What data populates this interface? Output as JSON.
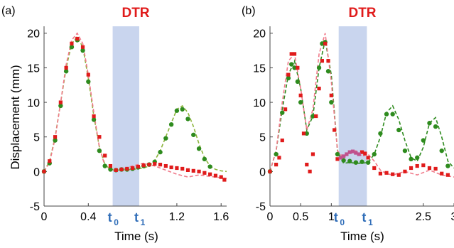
{
  "colors": {
    "highlight": "#c9d5ee",
    "accent_red": "#e01b1b",
    "green": "#2e8b1e",
    "green_curve": "#8cb43c",
    "red_curve": "#f07a8a",
    "tick_blue": "#2f6db8",
    "mag_dots": "#c0508c"
  },
  "chart_data": [
    {
      "panel_label": "(a)",
      "title": "DTR",
      "type": "scatter",
      "xlabel": "Time (s)",
      "ylabel": "Displacement (mm)",
      "xlim": [
        0,
        1.65
      ],
      "ylim": [
        -5,
        21
      ],
      "xticks": [
        {
          "v": 0,
          "t": "0"
        },
        {
          "v": 0.4,
          "t": "0.4"
        },
        {
          "v": 1.2,
          "t": "1.2"
        },
        {
          "v": 1.6,
          "t": "1.6"
        }
      ],
      "yticks": [
        {
          "v": -5,
          "t": "-5"
        },
        {
          "v": 0,
          "t": "0"
        },
        {
          "v": 5,
          "t": "5"
        },
        {
          "v": 10,
          "t": "10"
        },
        {
          "v": 15,
          "t": "15"
        },
        {
          "v": 20,
          "t": "20"
        }
      ],
      "special_ticks": [
        {
          "v": 0.62,
          "t": "t",
          "sub": "0"
        },
        {
          "v": 0.86,
          "t": "t",
          "sub": "1"
        }
      ],
      "highlight": [
        0.62,
        0.86
      ],
      "series": [
        {
          "style": "dash",
          "color": "#8cb43c",
          "x": [
            0,
            0.05,
            0.1,
            0.15,
            0.2,
            0.25,
            0.3,
            0.35,
            0.4,
            0.45,
            0.5,
            0.55,
            0.6,
            0.65,
            0.7,
            0.8,
            0.9,
            0.95,
            1.0,
            1.05,
            1.1,
            1.15,
            1.2,
            1.25,
            1.3,
            1.35,
            1.4,
            1.45,
            1.5,
            1.55,
            1.6,
            1.65
          ],
          "y": [
            0,
            1.5,
            5,
            10,
            15,
            18.5,
            19.5,
            18,
            13.5,
            8,
            3.5,
            1,
            0.3,
            0.2,
            0.2,
            0.3,
            0.5,
            0.8,
            1.6,
            3,
            5,
            7,
            9,
            9.5,
            8.5,
            6.5,
            4,
            2,
            0.8,
            0.3,
            0.1,
            0
          ]
        },
        {
          "style": "dash",
          "color": "#f07a8a",
          "x": [
            0,
            0.05,
            0.1,
            0.15,
            0.2,
            0.25,
            0.3,
            0.35,
            0.4,
            0.45,
            0.5,
            0.55,
            0.6,
            0.65,
            0.7,
            0.8,
            0.9,
            1.0,
            1.1,
            1.2,
            1.3,
            1.4,
            1.5,
            1.6,
            1.65
          ],
          "y": [
            0,
            1.3,
            4.8,
            10,
            15.5,
            19,
            20,
            18.5,
            14,
            8.5,
            3.5,
            0.8,
            0.2,
            0.1,
            0.3,
            0.8,
            1.2,
            0.8,
            0.2,
            -0.4,
            -0.8,
            -0.5,
            -0.7,
            -0.9,
            -1
          ]
        },
        {
          "style": "dots",
          "marker": "circle",
          "color": "#2e8b1e",
          "x": [
            0,
            0.05,
            0.1,
            0.15,
            0.2,
            0.25,
            0.3,
            0.35,
            0.4,
            0.45,
            0.5,
            0.55,
            0.6,
            0.65,
            0.7,
            0.75,
            0.8,
            0.85,
            0.9,
            0.95,
            1.0,
            1.05,
            1.1,
            1.15,
            1.2,
            1.25,
            1.3,
            1.35,
            1.4,
            1.45,
            1.5
          ],
          "y": [
            0,
            1.2,
            4.5,
            9.5,
            14.5,
            18,
            19,
            17.5,
            13,
            7.5,
            3,
            0.8,
            0.3,
            0.2,
            0.3,
            0.3,
            0.4,
            0.6,
            0.8,
            1.0,
            1.4,
            2.8,
            4.8,
            6.8,
            8.8,
            9.0,
            7.6,
            5.3,
            3.3,
            1.8,
            0.7
          ]
        },
        {
          "style": "dots",
          "marker": "square",
          "color": "#e01b1b",
          "x": [
            0,
            0.05,
            0.1,
            0.15,
            0.2,
            0.25,
            0.3,
            0.35,
            0.4,
            0.45,
            0.5,
            0.55,
            0.6,
            0.65,
            0.7,
            0.75,
            0.8,
            0.85,
            0.9,
            0.95,
            1.0,
            1.05,
            1.1,
            1.15,
            1.2,
            1.25,
            1.3,
            1.35,
            1.4,
            1.45,
            1.5,
            1.55,
            1.6,
            1.63
          ],
          "y": [
            0,
            1.5,
            5,
            10,
            15,
            18.5,
            19.2,
            18,
            14,
            8,
            5,
            2.3,
            0.8,
            0.2,
            0.3,
            0.4,
            0.5,
            0.7,
            0.9,
            1.0,
            1.1,
            1.0,
            0.8,
            0.6,
            0.5,
            0.4,
            0.2,
            0.1,
            0.0,
            -0.2,
            -0.4,
            -0.6,
            -0.8,
            -1.2
          ]
        }
      ]
    },
    {
      "panel_label": "(b)",
      "title": "DTR",
      "type": "scatter",
      "xlabel": "Time (s)",
      "ylabel": "",
      "xlim": [
        0,
        3
      ],
      "ylim": [
        -5,
        21
      ],
      "xticks": [
        {
          "v": 0,
          "t": "0"
        },
        {
          "v": 0.5,
          "t": "0.5"
        },
        {
          "v": 1,
          "t": "1"
        },
        {
          "v": 2.5,
          "t": "2.5"
        },
        {
          "v": 3,
          "t": "3"
        }
      ],
      "yticks": [
        {
          "v": -5,
          "t": "-5"
        },
        {
          "v": 0,
          "t": "0"
        },
        {
          "v": 5,
          "t": "5"
        },
        {
          "v": 10,
          "t": "10"
        },
        {
          "v": 15,
          "t": "15"
        },
        {
          "v": 20,
          "t": "20"
        }
      ],
      "special_ticks": [
        {
          "v": 1.12,
          "t": "t",
          "sub": "0"
        },
        {
          "v": 1.58,
          "t": "t",
          "sub": "1"
        }
      ],
      "highlight": [
        1.12,
        1.58
      ],
      "series": [
        {
          "style": "dash",
          "color": "#2e8b1e",
          "x": [
            0,
            0.1,
            0.2,
            0.3,
            0.4,
            0.5,
            0.6,
            0.7,
            0.8,
            0.9,
            1.0,
            1.1,
            1.2,
            1.3,
            1.4,
            1.5,
            1.6,
            1.7,
            1.8,
            1.9,
            2.0,
            2.1,
            2.2,
            2.3,
            2.4,
            2.5,
            2.6,
            2.7,
            2.8,
            2.9,
            3.0
          ],
          "y": [
            0,
            3,
            9,
            14,
            16,
            12,
            6,
            8,
            15,
            19,
            14,
            3,
            1.2,
            1.3,
            1.2,
            1.2,
            1.3,
            2.5,
            5,
            8.5,
            9.5,
            7.5,
            4.5,
            2,
            1.5,
            3.5,
            7,
            7.8,
            5,
            1.5,
            0.5
          ]
        },
        {
          "style": "dash",
          "color": "#f07a8a",
          "x": [
            0,
            0.1,
            0.2,
            0.3,
            0.4,
            0.5,
            0.6,
            0.7,
            0.8,
            0.9,
            1.0,
            1.1,
            1.2,
            1.3,
            1.4,
            1.5,
            1.6,
            1.7,
            1.8,
            1.9,
            2.0,
            2.2,
            2.4,
            2.6,
            2.8,
            3.0
          ],
          "y": [
            0,
            3,
            10,
            16,
            17,
            12,
            6,
            9,
            17,
            20,
            13,
            3,
            2,
            2.8,
            3,
            2.2,
            2.5,
            1.5,
            0.2,
            -0.3,
            -0.5,
            0,
            -0.5,
            0.2,
            -0.5,
            -0.8
          ]
        },
        {
          "style": "dots",
          "marker": "circle",
          "color": "#2e8b1e",
          "x": [
            0,
            0.1,
            0.2,
            0.3,
            0.35,
            0.4,
            0.45,
            0.5,
            0.6,
            0.7,
            0.8,
            0.85,
            0.9,
            0.95,
            1.0,
            1.1,
            1.2,
            1.3,
            1.4,
            1.5,
            1.6,
            1.7,
            1.8,
            1.9,
            2.0,
            2.1,
            2.2,
            2.3,
            2.4,
            2.5,
            2.6,
            2.7,
            2.8,
            2.9
          ],
          "y": [
            0,
            2.5,
            8.5,
            13.5,
            15.5,
            15,
            13,
            10,
            5.5,
            8,
            15,
            18.5,
            18.7,
            14.5,
            10,
            2.5,
            1.6,
            1.5,
            1.3,
            1.4,
            1.3,
            2.5,
            5.5,
            8.3,
            8.3,
            6,
            3,
            1.8,
            2,
            4.5,
            7,
            6.5,
            3,
            0.8
          ]
        },
        {
          "style": "dots",
          "marker": "square",
          "color": "#e01b1b",
          "x": [
            0,
            0.1,
            0.15,
            0.2,
            0.25,
            0.3,
            0.35,
            0.4,
            0.45,
            0.5,
            0.55,
            0.6,
            0.65,
            0.7,
            0.75,
            0.8,
            0.85,
            0.9,
            0.95,
            1.0,
            1.05,
            1.1,
            1.5,
            1.55,
            1.6,
            1.7,
            1.8,
            1.9,
            2.0,
            2.1,
            2.2,
            2.3,
            2.4,
            2.5,
            2.6,
            2.7,
            2.8,
            2.9
          ],
          "y": [
            0,
            1,
            2,
            4.5,
            9,
            14,
            17,
            17,
            15,
            11,
            5.5,
            1,
            0,
            2.5,
            8,
            12,
            16,
            18.5,
            16,
            11,
            6,
            1.8,
            2.8,
            2.6,
            2.0,
            0.5,
            -0.3,
            -0.2,
            -0.4,
            -0.5,
            0,
            0.5,
            0.8,
            0.9,
            0.5,
            0.4,
            -0.3,
            -0.5
          ]
        },
        {
          "style": "dots",
          "marker": "square",
          "color": "#c0508c",
          "x": [
            1.15,
            1.2,
            1.25,
            1.3,
            1.35,
            1.4,
            1.45
          ],
          "y": [
            2.0,
            2.2,
            2.5,
            2.8,
            2.9,
            2.7,
            2.5
          ]
        }
      ]
    }
  ]
}
